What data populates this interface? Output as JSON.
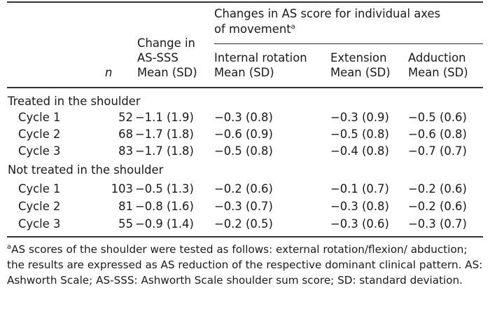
{
  "header": {
    "group_line1": "Changes in AS score for individual axes",
    "group_line2": "of movement",
    "group_sup": "a",
    "n_label": "n",
    "change_line1": "Change in",
    "change_line2": "AS-SSS",
    "change_line3": "Mean (SD)",
    "internal_line1": "Internal rotation",
    "internal_line2": "Mean (SD)",
    "extension_line1": "Extension",
    "extension_line2": "Mean (SD)",
    "adduction_line1": "Adduction",
    "adduction_line2": "Mean (SD)"
  },
  "groups": [
    {
      "label": "Treated in the shoulder",
      "rows": [
        {
          "cycle": "Cycle 1",
          "n": "52",
          "change": "−1.1 (1.9)",
          "internal": "−0.3 (0.8)",
          "extension": "−0.3 (0.9)",
          "adduction": "−0.5 (0.6)"
        },
        {
          "cycle": "Cycle 2",
          "n": "68",
          "change": "−1.7 (1.8)",
          "internal": "−0.6 (0.9)",
          "extension": "−0.5 (0.8)",
          "adduction": "−0.6 (0.8)"
        },
        {
          "cycle": "Cycle 3",
          "n": "83",
          "change": "−1.7 (1.8)",
          "internal": "−0.5 (0.8)",
          "extension": "−0.4 (0.8)",
          "adduction": "−0.7 (0.7)"
        }
      ]
    },
    {
      "label": "Not treated in the shoulder",
      "rows": [
        {
          "cycle": "Cycle 1",
          "n": "103",
          "change": "−0.5 (1.3)",
          "internal": "−0.2 (0.6)",
          "extension": "−0.1 (0.7)",
          "adduction": "−0.2 (0.6)"
        },
        {
          "cycle": "Cycle 2",
          "n": "81",
          "change": "−0.8 (1.6)",
          "internal": "−0.3 (0.7)",
          "extension": "−0.3 (0.8)",
          "adduction": "−0.2 (0.6)"
        },
        {
          "cycle": "Cycle 3",
          "n": "55",
          "change": "−0.9 (1.4)",
          "internal": "−0.2 (0.5)",
          "extension": "−0.3 (0.6)",
          "adduction": "−0.3 (0.7)"
        }
      ]
    }
  ],
  "footnote": {
    "sup": "a",
    "text": "AS scores of the shoulder were tested as follows: external rotation/flexion/ abduction; the results are expressed as AS reduction of the respective dominant clinical pattern. AS: Ashworth Scale; AS-SSS: Ashworth Scale shoulder sum score; SD: standard deviation."
  }
}
